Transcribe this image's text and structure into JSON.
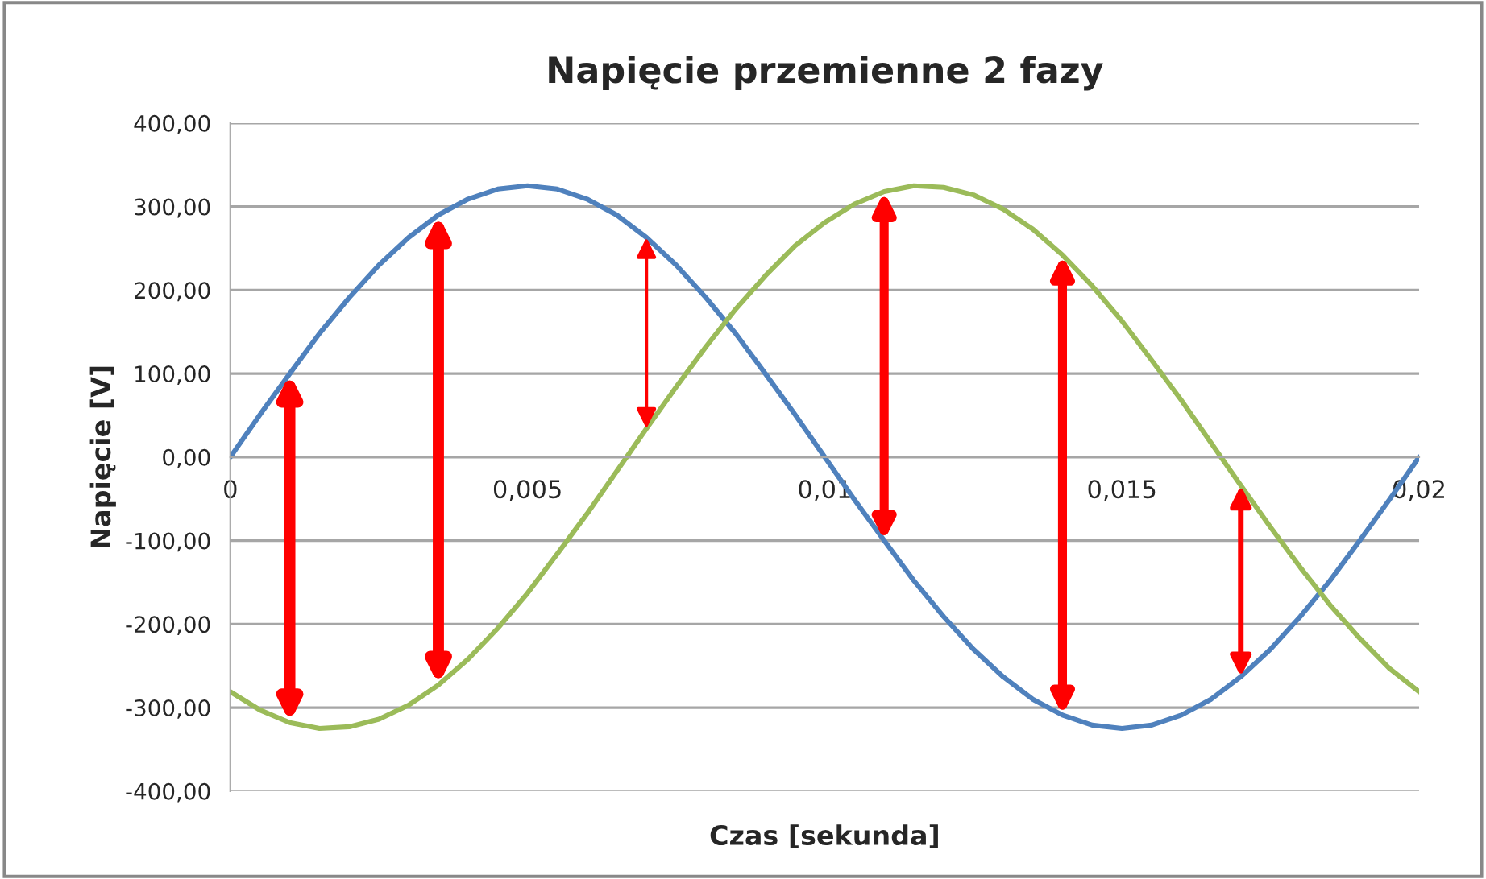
{
  "chart_data": {
    "type": "line",
    "title": "Napięcie przemienne 2 fazy",
    "xlabel": "Czas [sekunda]",
    "ylabel": "Napięcie [V]",
    "x": [
      0,
      0.0005,
      0.001,
      0.0015,
      0.002,
      0.0025,
      0.003,
      0.0035,
      0.004,
      0.0045,
      0.005,
      0.0055,
      0.006,
      0.0065,
      0.007,
      0.0075,
      0.008,
      0.0085,
      0.009,
      0.0095,
      0.01,
      0.0105,
      0.011,
      0.0115,
      0.012,
      0.0125,
      0.013,
      0.0135,
      0.014,
      0.0145,
      0.015,
      0.0155,
      0.016,
      0.0165,
      0.017,
      0.0175,
      0.018,
      0.0185,
      0.019,
      0.0195,
      0.02
    ],
    "series": [
      {
        "color": "#4f81bd",
        "values": [
          0,
          51,
          100,
          148,
          191,
          230,
          263,
          290,
          309,
          321,
          325,
          321,
          309,
          290,
          263,
          230,
          191,
          148,
          100,
          51,
          0,
          -51,
          -100,
          -148,
          -191,
          -230,
          -263,
          -290,
          -309,
          -321,
          -325,
          -321,
          -309,
          -290,
          -263,
          -230,
          -191,
          -148,
          -100,
          -51,
          0
        ]
      },
      {
        "color": "#9bbb59",
        "values": [
          -281,
          -303,
          -318,
          -325,
          -323,
          -314,
          -297,
          -273,
          -242,
          -205,
          -163,
          -116,
          -68,
          -17,
          34,
          84,
          132,
          177,
          217,
          253,
          281,
          303,
          318,
          325,
          323,
          314,
          297,
          273,
          242,
          205,
          163,
          116,
          68,
          17,
          -34,
          -84,
          -132,
          -177,
          -217,
          -253,
          -281
        ]
      }
    ],
    "xlim": [
      0,
      0.02
    ],
    "xticks": [
      0,
      {
        "value": 0.005,
        "label": "0,005"
      },
      {
        "value": 0.01,
        "label": "0,01"
      },
      {
        "value": 0.015,
        "label": "0,015"
      },
      {
        "value": 0.02,
        "label": "0,02"
      }
    ],
    "ylim": [
      -400,
      400
    ],
    "yticks": [
      {
        "value": -400,
        "label": "-400,00"
      },
      {
        "value": -300,
        "label": "-300,00"
      },
      {
        "value": -200,
        "label": "-200,00"
      },
      {
        "value": -100,
        "label": "-100,00"
      },
      {
        "value": 0,
        "label": "0,00"
      },
      {
        "value": 100,
        "label": "100,00"
      },
      {
        "value": 200,
        "label": "200,00"
      },
      {
        "value": 300,
        "label": "300,00"
      },
      {
        "value": 400,
        "label": "400,00"
      }
    ],
    "grid": "y",
    "legend": false,
    "marker": "none",
    "line_style": "solid"
  }
}
